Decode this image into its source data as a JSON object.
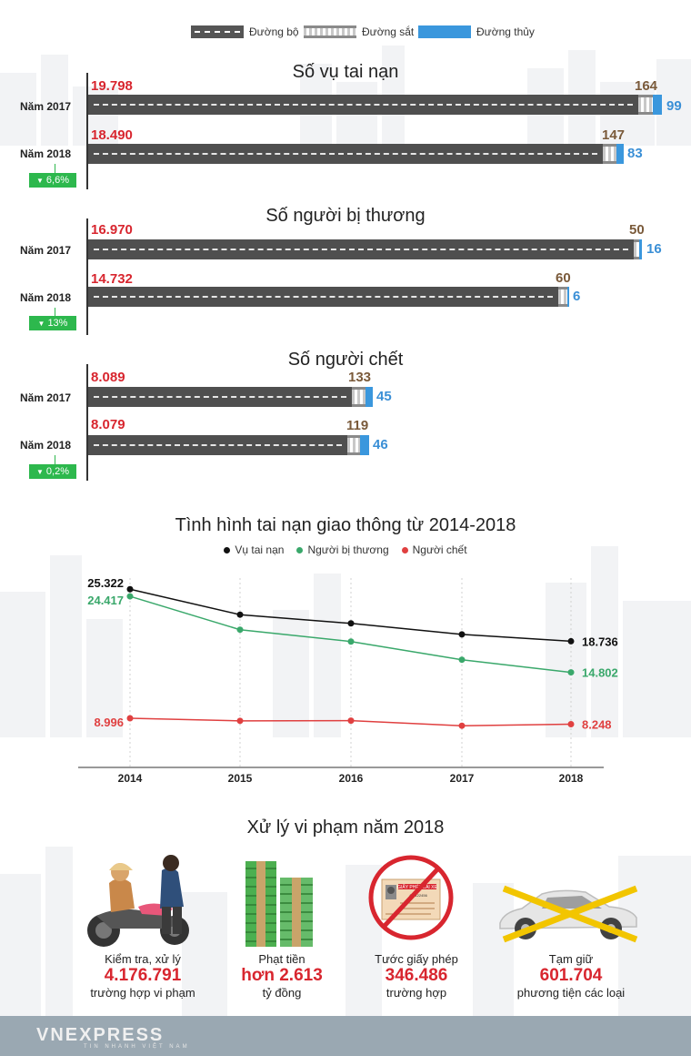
{
  "legend": {
    "road": "Đường bộ",
    "rail": "Đường sắt",
    "water": "Đường thủy"
  },
  "colors": {
    "road": "#4f4f4f",
    "water": "#3a97dd",
    "red": "#d8262f",
    "green": "#2db84d",
    "black": "#111111"
  },
  "bar_sections": [
    {
      "title": "Số vụ tai nạn",
      "rows": [
        {
          "year": "Năm 2017",
          "road": "19.798",
          "rail": "164",
          "water": "99"
        },
        {
          "year": "Năm 2018",
          "road": "18.490",
          "rail": "147",
          "water": "83"
        }
      ],
      "change": "6,6%"
    },
    {
      "title": "Số người bị thương",
      "rows": [
        {
          "year": "Năm 2017",
          "road": "16.970",
          "rail": "50",
          "water": "16"
        },
        {
          "year": "Năm 2018",
          "road": "14.732",
          "rail": "60",
          "water": "6"
        }
      ],
      "change": "13%"
    },
    {
      "title": "Số người chết",
      "rows": [
        {
          "year": "Năm 2017",
          "road": "8.089",
          "rail": "133",
          "water": "45"
        },
        {
          "year": "Năm 2018",
          "road": "8.079",
          "rail": "119",
          "water": "46"
        }
      ],
      "change": "0,2%"
    }
  ],
  "chart_data": [
    {
      "type": "bar",
      "title": "Số vụ tai nạn",
      "categories": [
        "Năm 2017",
        "Năm 2018"
      ],
      "series": [
        {
          "name": "Đường bộ",
          "values": [
            19798,
            18490
          ]
        },
        {
          "name": "Đường sắt",
          "values": [
            164,
            147
          ]
        },
        {
          "name": "Đường thủy",
          "values": [
            99,
            83
          ]
        }
      ]
    },
    {
      "type": "bar",
      "title": "Số người bị thương",
      "categories": [
        "Năm 2017",
        "Năm 2018"
      ],
      "series": [
        {
          "name": "Đường bộ",
          "values": [
            16970,
            14732
          ]
        },
        {
          "name": "Đường sắt",
          "values": [
            50,
            60
          ]
        },
        {
          "name": "Đường thủy",
          "values": [
            16,
            6
          ]
        }
      ]
    },
    {
      "type": "bar",
      "title": "Số người chết",
      "categories": [
        "Năm 2017",
        "Năm 2018"
      ],
      "series": [
        {
          "name": "Đường bộ",
          "values": [
            8089,
            8079
          ]
        },
        {
          "name": "Đường sắt",
          "values": [
            133,
            119
          ]
        },
        {
          "name": "Đường thủy",
          "values": [
            45,
            46
          ]
        }
      ]
    },
    {
      "type": "line",
      "title": "Tình hình tai nạn giao thông từ 2014-2018",
      "x": [
        "2014",
        "2015",
        "2016",
        "2017",
        "2018"
      ],
      "series": [
        {
          "name": "Vụ tai nạn",
          "values": [
            25322,
            22100,
            21000,
            19600,
            18736
          ]
        },
        {
          "name": "Người bị thương",
          "values": [
            24417,
            20200,
            18700,
            16400,
            14802
          ]
        },
        {
          "name": "Người chết",
          "values": [
            8996,
            8670,
            8690,
            8050,
            8248
          ]
        }
      ],
      "point_labels": {
        "Vụ tai nạn": {
          "first": "25.322",
          "last": "18.736"
        },
        "Người bị thương": {
          "first": "24.417",
          "last": "14.802"
        },
        "Người chết": {
          "first": "8.996",
          "last": "8.248"
        }
      },
      "legend_position": "top"
    }
  ],
  "violations": {
    "title": "Xử lý vi phạm năm 2018",
    "items": [
      {
        "label": "Kiểm tra, xử lý",
        "value": "4.176.791",
        "sub": "trường hợp vi phạm",
        "icon": "police-check-icon"
      },
      {
        "label": "Phạt tiền",
        "value": "hơn 2.613",
        "sub": "tỷ đồng",
        "icon": "money-stack-icon"
      },
      {
        "label": "Tước giấy phép",
        "value": "346.486",
        "sub": "trường hợp",
        "icon": "revoked-license-icon"
      },
      {
        "label": "Tạm giữ",
        "value": "601.704",
        "sub": "phương tiện các loại",
        "icon": "impounded-car-icon"
      }
    ]
  },
  "license_card": {
    "heading": "GIẤY PHÉP LÁI XE",
    "code": "AK 122456"
  },
  "footer": {
    "brand": "VNEXPRESS",
    "tagline": "TIN NHANH VIỆT NAM"
  }
}
